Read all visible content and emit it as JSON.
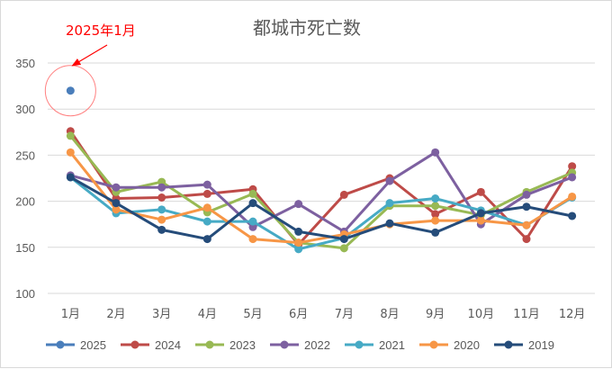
{
  "chart_data": {
    "type": "line",
    "title": "都城市死亡数",
    "xlabel": "",
    "ylabel": "",
    "categories": [
      "1月",
      "2月",
      "3月",
      "4月",
      "5月",
      "6月",
      "7月",
      "8月",
      "9月",
      "10月",
      "11月",
      "12月"
    ],
    "ylim": [
      100,
      350
    ],
    "yticks": [
      100,
      150,
      200,
      250,
      300,
      350
    ],
    "grid": true,
    "legend": "bottom",
    "annotation": {
      "text": "2025年1月",
      "color": "#ff0000",
      "target_series": "2025",
      "target_index": 0
    },
    "series": [
      {
        "name": "2025",
        "color": "#4a7ebb",
        "values": [
          320,
          null,
          null,
          null,
          null,
          null,
          null,
          null,
          null,
          null,
          null,
          null
        ]
      },
      {
        "name": "2024",
        "color": "#be4b48",
        "values": [
          276,
          203,
          204,
          208,
          213,
          153,
          207,
          225,
          186,
          210,
          159,
          238
        ]
      },
      {
        "name": "2023",
        "color": "#98b954",
        "values": [
          271,
          210,
          221,
          188,
          208,
          155,
          149,
          195,
          195,
          185,
          210,
          231
        ]
      },
      {
        "name": "2022",
        "color": "#7d60a0",
        "values": [
          228,
          215,
          215,
          218,
          172,
          197,
          167,
          222,
          253,
          175,
          207,
          226
        ]
      },
      {
        "name": "2021",
        "color": "#46aac5",
        "values": [
          226,
          187,
          191,
          178,
          178,
          148,
          160,
          198,
          203,
          190,
          174,
          204
        ]
      },
      {
        "name": "2020",
        "color": "#f79646",
        "values": [
          253,
          191,
          180,
          193,
          159,
          155,
          164,
          175,
          179,
          179,
          174,
          205
        ]
      },
      {
        "name": "2019",
        "color": "#254c7a",
        "values": [
          226,
          198,
          169,
          159,
          198,
          167,
          159,
          176,
          166,
          187,
          194,
          184
        ]
      }
    ]
  }
}
